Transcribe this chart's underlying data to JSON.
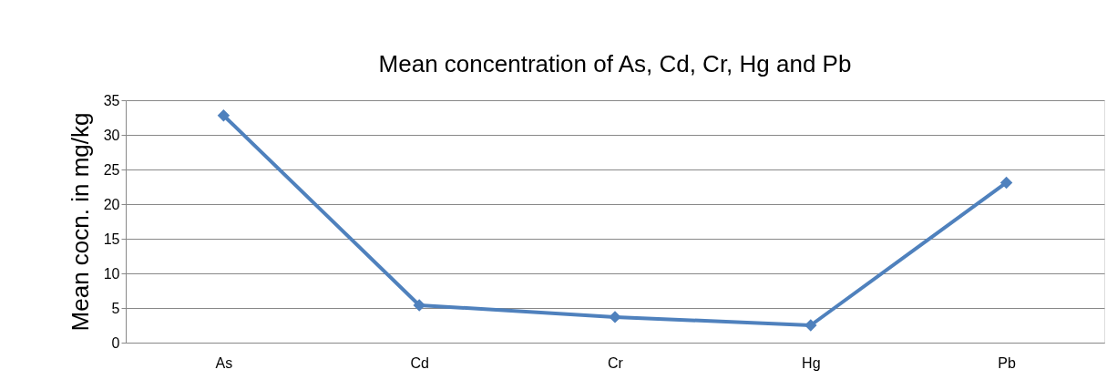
{
  "chart_data": {
    "type": "line",
    "title": "Mean concentration of  As, Cd, Cr, Hg and Pb",
    "ylabel": "Mean cocn. in mg/kg",
    "categories": [
      "As",
      "Cd",
      "Cr",
      "Hg",
      "Pb"
    ],
    "series": [
      {
        "color": "#4f81bd",
        "values": [
          32.8,
          5.4,
          3.7,
          2.5,
          23.1
        ]
      }
    ],
    "ylim": [
      0,
      35
    ],
    "yticks": [
      0,
      5,
      10,
      15,
      20,
      25,
      30,
      35
    ],
    "grid": "y",
    "marker": "diamond",
    "legend": false,
    "line_style": "solid"
  }
}
